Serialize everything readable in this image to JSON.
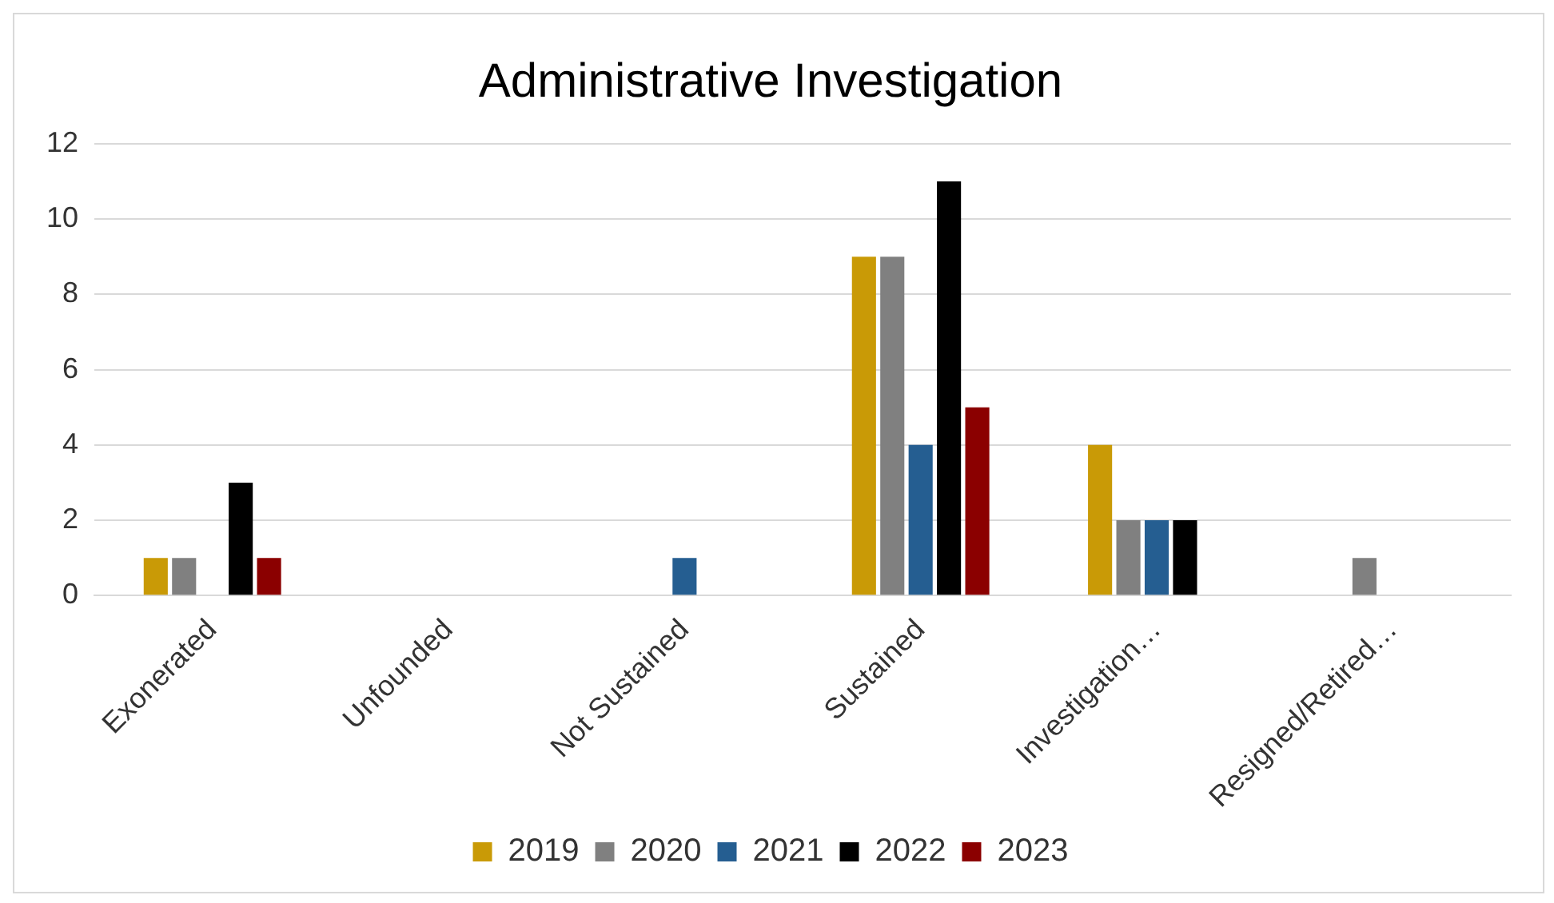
{
  "chart_data": {
    "type": "bar",
    "title": "Administrative Investigation",
    "categories": [
      "Exonerated",
      "Unfounded",
      "Not Sustained",
      "Sustained",
      "Investigation…",
      "Resigned/Retired…"
    ],
    "series": [
      {
        "name": "2019",
        "color": "#c99a06",
        "values": [
          1,
          0,
          0,
          9,
          4,
          0
        ]
      },
      {
        "name": "2020",
        "color": "#808080",
        "values": [
          1,
          0,
          0,
          9,
          2,
          1
        ]
      },
      {
        "name": "2021",
        "color": "#255e91",
        "values": [
          0,
          0,
          1,
          4,
          2,
          0
        ]
      },
      {
        "name": "2022",
        "color": "#000000",
        "values": [
          3,
          0,
          0,
          11,
          2,
          0
        ]
      },
      {
        "name": "2023",
        "color": "#8b0000",
        "values": [
          1,
          0,
          0,
          5,
          0,
          0
        ]
      }
    ],
    "ylim": [
      0,
      12
    ],
    "yticks": [
      0,
      2,
      4,
      6,
      8,
      10,
      12
    ],
    "grid": "y",
    "legend": "bottom"
  }
}
